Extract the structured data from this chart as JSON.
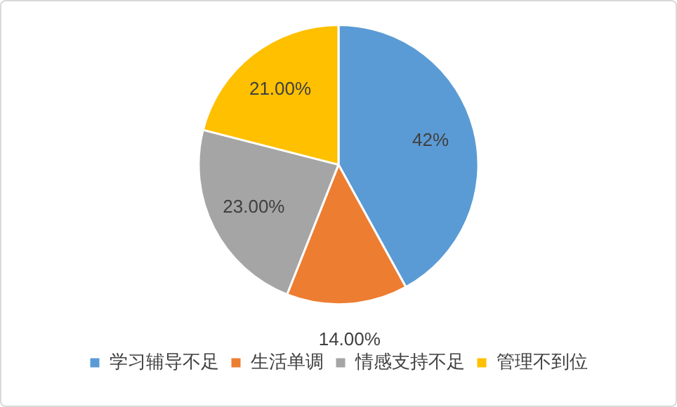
{
  "chart_data": {
    "type": "pie",
    "categories": [
      "学习辅导不足",
      "生活单调",
      "情感支持不足",
      "管理不到位"
    ],
    "values": [
      42,
      14,
      23,
      21
    ],
    "colors": [
      "#5b9bd5",
      "#ed7d31",
      "#a5a5a5",
      "#ffc000"
    ],
    "value_labels": [
      "42%",
      "14.00%",
      "23.00%",
      "21.00%"
    ],
    "legend": "bottom"
  }
}
